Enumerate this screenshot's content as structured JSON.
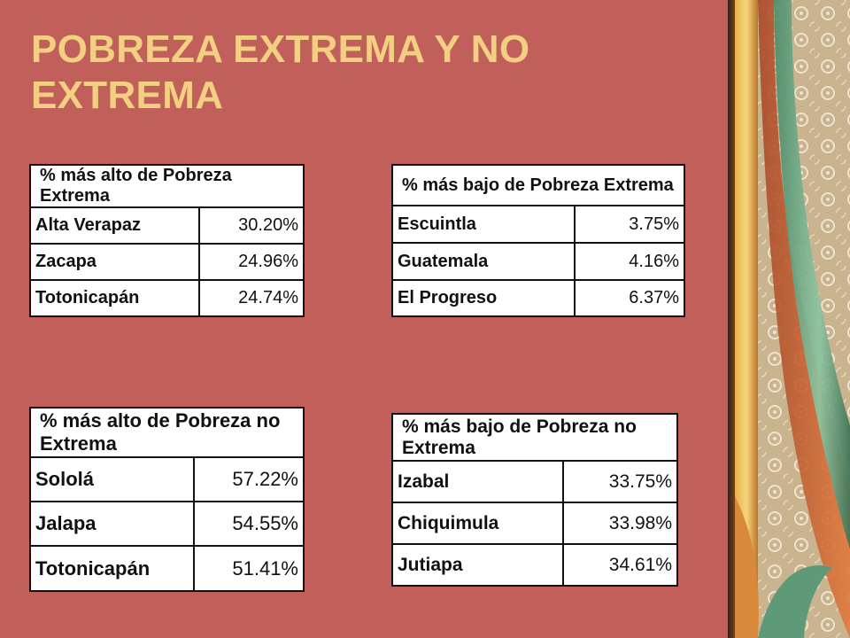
{
  "slide": {
    "title": "POBREZA EXTREMA Y NO EXTREMA",
    "colors": {
      "background": "#c1605a",
      "title": "#f3cf82"
    }
  },
  "tables": [
    {
      "header": "% más alto de Pobreza Extrema",
      "rows": [
        {
          "name": "Alta Verapaz",
          "value": "30.20%"
        },
        {
          "name": "Zacapa",
          "value": "24.96%"
        },
        {
          "name": "Totonicapán",
          "value": "24.74%"
        }
      ]
    },
    {
      "header": "% más bajo de Pobreza Extrema",
      "rows": [
        {
          "name": "Escuintla",
          "value": "3.75%"
        },
        {
          "name": "Guatemala",
          "value": "4.16%"
        },
        {
          "name": "El Progreso",
          "value": "6.37%"
        }
      ]
    },
    {
      "header": "% más alto de Pobreza no Extrema",
      "rows": [
        {
          "name": "Sololá",
          "value": "57.22%"
        },
        {
          "name": "Jalapa",
          "value": "54.55%"
        },
        {
          "name": "Totonicapán",
          "value": "51.41%"
        }
      ]
    },
    {
      "header": "% más bajo de Pobreza no Extrema",
      "rows": [
        {
          "name": "Izabal",
          "value": "33.75%"
        },
        {
          "name": "Chiquimula",
          "value": "33.98%"
        },
        {
          "name": "Jutiapa",
          "value": "34.61%"
        }
      ]
    }
  ]
}
